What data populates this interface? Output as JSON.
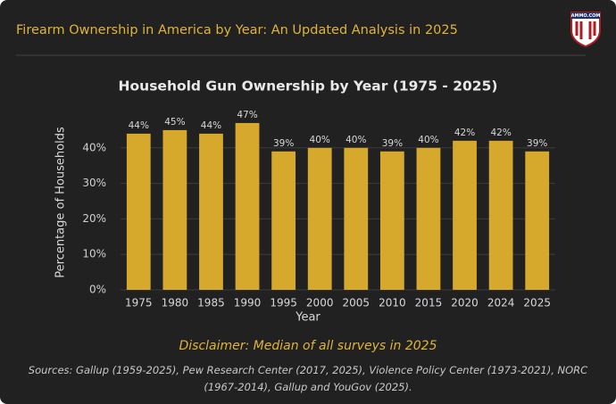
{
  "header": {
    "title": "Firearm Ownership in America by Year: An Updated Analysis in 2025",
    "logo": "AMMO.COM"
  },
  "chart_data": {
    "type": "bar",
    "title": "Household Gun Ownership by Year (1975 - 2025)",
    "x_label": "Year",
    "y_label": "Percentage of Households",
    "categories": [
      "1975",
      "1980",
      "1985",
      "1990",
      "1995",
      "2000",
      "2005",
      "2010",
      "2015",
      "2020",
      "2024",
      "2025"
    ],
    "values": [
      44,
      45,
      44,
      47,
      39,
      40,
      40,
      39,
      40,
      42,
      42,
      39
    ],
    "value_labels": [
      "44%",
      "45%",
      "44%",
      "47%",
      "39%",
      "40%",
      "40%",
      "39%",
      "40%",
      "42%",
      "42%",
      "39%"
    ],
    "color": "#d6a82c",
    "ylim": [
      0,
      50
    ],
    "yticks": [
      {
        "value": 0,
        "label": "0%"
      },
      {
        "value": 10,
        "label": "10%"
      },
      {
        "value": 20,
        "label": "20%"
      },
      {
        "value": 30,
        "label": "30%"
      },
      {
        "value": 40,
        "label": "40%"
      }
    ],
    "grid": true
  },
  "footer": {
    "disclaimer": "Disclaimer: Median of all surveys in 2025",
    "sources": "Sources: Gallup (1959-2025), Pew Research Center (2017, 2025), Violence Policy Center (1973-2021), NORC (1967-2014), Gallup and YouGov (2025)."
  }
}
